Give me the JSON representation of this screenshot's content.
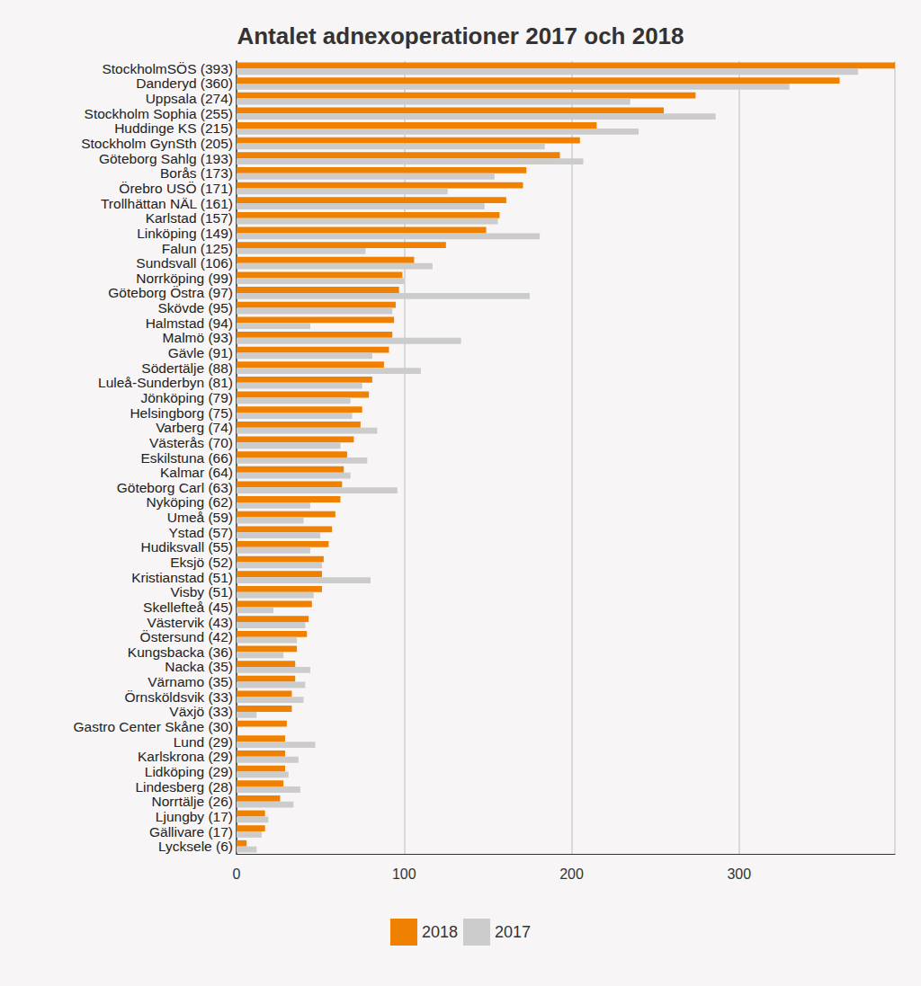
{
  "chart_data": {
    "type": "bar",
    "orientation": "horizontal",
    "title": "Antalet adnexoperationer 2017 och 2018",
    "categories": [
      "StockholmSÖS (393)",
      "Danderyd (360)",
      "Uppsala (274)",
      "Stockholm Sophia (255)",
      "Huddinge KS (215)",
      "Stockholm GynSth (205)",
      "Göteborg Sahlg (193)",
      "Borås (173)",
      "Örebro USÖ (171)",
      "Trollhättan NÄL (161)",
      "Karlstad (157)",
      "Linköping (149)",
      "Falun (125)",
      "Sundsvall (106)",
      "Norrköping (99)",
      "Göteborg Östra (97)",
      "Skövde (95)",
      "Halmstad (94)",
      "Malmö (93)",
      "Gävle (91)",
      "Södertälje (88)",
      "Luleå-Sunderbyn (81)",
      "Jönköping (79)",
      "Helsingborg (75)",
      "Varberg (74)",
      "Västerås (70)",
      "Eskilstuna (66)",
      "Kalmar (64)",
      "Göteborg Carl (63)",
      "Nyköping (62)",
      "Umeå (59)",
      "Ystad (57)",
      "Hudiksvall (55)",
      "Eksjö (52)",
      "Kristianstad (51)",
      "Visby (51)",
      "Skellefteå (45)",
      "Västervik (43)",
      "Östersund (42)",
      "Kungsbacka (36)",
      "Nacka (35)",
      "Värnamo (35)",
      "Örnsköldsvik (33)",
      "Växjö (33)",
      "Gastro Center Skåne (30)",
      "Lund (29)",
      "Karlskrona (29)",
      "Lidköping (29)",
      "Lindesberg (28)",
      "Norrtälje (26)",
      "Ljungby (17)",
      "Gällivare (17)",
      "Lycksele (6)"
    ],
    "series": [
      {
        "name": "2018",
        "color": "#f08000",
        "values": [
          393,
          360,
          274,
          255,
          215,
          205,
          193,
          173,
          171,
          161,
          157,
          149,
          125,
          106,
          99,
          97,
          95,
          94,
          93,
          91,
          88,
          81,
          79,
          75,
          74,
          70,
          66,
          64,
          63,
          62,
          59,
          57,
          55,
          52,
          51,
          51,
          45,
          43,
          42,
          36,
          35,
          35,
          33,
          33,
          30,
          29,
          29,
          29,
          28,
          26,
          17,
          17,
          6
        ]
      },
      {
        "name": "2017",
        "color": "#cccccc",
        "values": [
          371,
          330,
          235,
          286,
          240,
          184,
          207,
          154,
          126,
          148,
          156,
          181,
          77,
          117,
          100,
          175,
          93,
          44,
          134,
          81,
          110,
          75,
          68,
          69,
          84,
          62,
          78,
          68,
          96,
          44,
          40,
          50,
          44,
          51,
          80,
          46,
          22,
          41,
          36,
          28,
          44,
          41,
          40,
          12,
          null,
          47,
          37,
          31,
          38,
          34,
          19,
          15,
          12
        ]
      }
    ],
    "xlim": [
      0,
      393
    ],
    "xticks": [
      0,
      100,
      200,
      300
    ],
    "grid": true,
    "legend": "bottom"
  }
}
